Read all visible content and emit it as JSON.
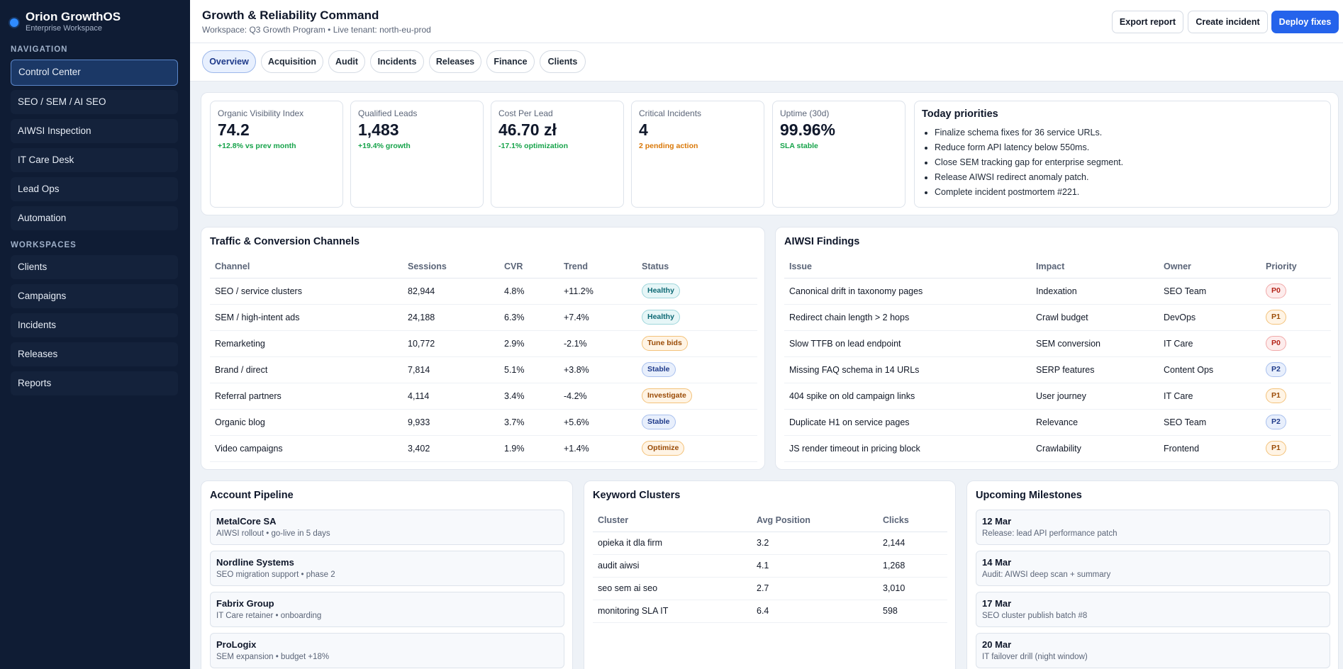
{
  "brand": {
    "name": "Orion GrowthOS",
    "sub": "Enterprise Workspace"
  },
  "nav": {
    "section_label": "Navigation",
    "items": [
      {
        "label": "Control Center"
      },
      {
        "label": "SEO / SEM / AI SEO"
      },
      {
        "label": "AIWSI Inspection"
      },
      {
        "label": "IT Care Desk"
      },
      {
        "label": "Lead Ops"
      },
      {
        "label": "Automation"
      }
    ]
  },
  "workspaces": {
    "section_label": "Workspaces",
    "items": [
      {
        "label": "Clients"
      },
      {
        "label": "Campaigns"
      },
      {
        "label": "Incidents"
      },
      {
        "label": "Releases"
      },
      {
        "label": "Reports"
      }
    ]
  },
  "header": {
    "title": "Growth & Reliability Command",
    "subtitle": "Workspace: Q3 Growth Program • Live tenant: north-eu-prod",
    "export_label": "Export report",
    "create_label": "Create incident",
    "deploy_label": "Deploy fixes"
  },
  "tabs": [
    {
      "label": "Overview"
    },
    {
      "label": "Acquisition"
    },
    {
      "label": "Audit"
    },
    {
      "label": "Incidents"
    },
    {
      "label": "Releases"
    },
    {
      "label": "Finance"
    },
    {
      "label": "Clients"
    }
  ],
  "kpis": [
    {
      "label": "Organic Visibility Index",
      "value": "74.2",
      "delta": "+12.8% vs prev month"
    },
    {
      "label": "Qualified Leads",
      "value": "1,483",
      "delta": "+19.4% growth"
    },
    {
      "label": "Cost Per Lead",
      "value": "46.70 zł",
      "delta": "-17.1% optimization"
    },
    {
      "label": "Critical Incidents",
      "value": "4",
      "delta": "2 pending action"
    },
    {
      "label": "Uptime (30d)",
      "value": "99.96%",
      "delta": "SLA stable"
    }
  ],
  "priorities": {
    "title": "Today priorities",
    "items": [
      "Finalize schema fixes for 36 service URLs.",
      "Reduce form API latency below 550ms.",
      "Close SEM tracking gap for enterprise segment.",
      "Release AIWSI redirect anomaly patch.",
      "Complete incident postmortem #221."
    ]
  },
  "traffic": {
    "title": "Traffic & Conversion Channels",
    "columns": [
      "Channel",
      "Sessions",
      "CVR",
      "Trend",
      "Status"
    ],
    "rows": [
      {
        "channel": "SEO / service clusters",
        "sessions": "82,944",
        "cvr": "4.8%",
        "trend": "+11.2%",
        "status": "Healthy"
      },
      {
        "channel": "SEM / high-intent ads",
        "sessions": "24,188",
        "cvr": "6.3%",
        "trend": "+7.4%",
        "status": "Healthy"
      },
      {
        "channel": "Remarketing",
        "sessions": "10,772",
        "cvr": "2.9%",
        "trend": "-2.1%",
        "status": "Tune bids"
      },
      {
        "channel": "Brand / direct",
        "sessions": "7,814",
        "cvr": "5.1%",
        "trend": "+3.8%",
        "status": "Stable"
      },
      {
        "channel": "Referral partners",
        "sessions": "4,114",
        "cvr": "3.4%",
        "trend": "-4.2%",
        "status": "Investigate"
      },
      {
        "channel": "Organic blog",
        "sessions": "9,933",
        "cvr": "3.7%",
        "trend": "+5.6%",
        "status": "Stable"
      },
      {
        "channel": "Video campaigns",
        "sessions": "3,402",
        "cvr": "1.9%",
        "trend": "+1.4%",
        "status": "Optimize"
      }
    ]
  },
  "findings": {
    "title": "AIWSI Findings",
    "columns": [
      "Issue",
      "Impact",
      "Owner",
      "Priority"
    ],
    "rows": [
      {
        "issue": "Canonical drift in taxonomy pages",
        "impact": "Indexation",
        "owner": "SEO Team",
        "priority": "P0"
      },
      {
        "issue": "Redirect chain length > 2 hops",
        "impact": "Crawl budget",
        "owner": "DevOps",
        "priority": "P1"
      },
      {
        "issue": "Slow TTFB on lead endpoint",
        "impact": "SEM conversion",
        "owner": "IT Care",
        "priority": "P0"
      },
      {
        "issue": "Missing FAQ schema in 14 URLs",
        "impact": "SERP features",
        "owner": "Content Ops",
        "priority": "P2"
      },
      {
        "issue": "404 spike on old campaign links",
        "impact": "User journey",
        "owner": "IT Care",
        "priority": "P1"
      },
      {
        "issue": "Duplicate H1 on service pages",
        "impact": "Relevance",
        "owner": "SEO Team",
        "priority": "P2"
      },
      {
        "issue": "JS render timeout in pricing block",
        "impact": "Crawlability",
        "owner": "Frontend",
        "priority": "P1"
      }
    ]
  },
  "pipeline": {
    "title": "Account Pipeline",
    "items": [
      {
        "name": "MetalCore SA",
        "detail": "AIWSI rollout • go-live in 5 days"
      },
      {
        "name": "Nordline Systems",
        "detail": "SEO migration support • phase 2"
      },
      {
        "name": "Fabrix Group",
        "detail": "IT Care retainer • onboarding"
      },
      {
        "name": "ProLogix",
        "detail": "SEM expansion • budget +18%"
      }
    ]
  },
  "keywords": {
    "title": "Keyword Clusters",
    "columns": [
      "Cluster",
      "Avg Position",
      "Clicks"
    ],
    "rows": [
      {
        "cluster": "opieka it dla firm",
        "position": "3.2",
        "clicks": "2,144"
      },
      {
        "cluster": "audit aiwsi",
        "position": "4.1",
        "clicks": "1,268"
      },
      {
        "cluster": "seo sem ai seo",
        "position": "2.7",
        "clicks": "3,010"
      },
      {
        "cluster": "monitoring SLA IT",
        "position": "6.4",
        "clicks": "598"
      }
    ]
  },
  "milestones": {
    "title": "Upcoming Milestones",
    "items": [
      {
        "date": "12 Mar",
        "detail": "Release: lead API performance patch"
      },
      {
        "date": "14 Mar",
        "detail": "Audit: AIWSI deep scan + summary"
      },
      {
        "date": "17 Mar",
        "detail": "SEO cluster publish batch #8"
      },
      {
        "date": "20 Mar",
        "detail": "IT failover drill (night window)"
      }
    ]
  },
  "colors": {
    "sidebar": "#0f1c34",
    "accent": "#2563eb",
    "positive": "#16a34a",
    "warning": "#d97706"
  }
}
